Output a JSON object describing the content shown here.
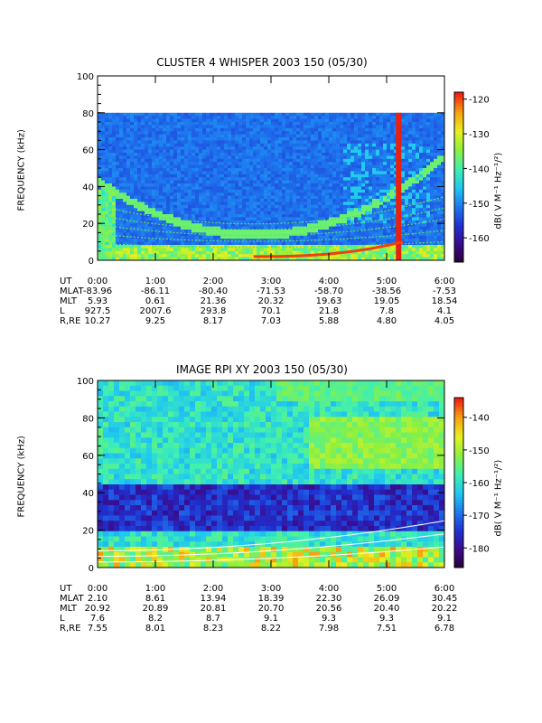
{
  "chart_data": [
    {
      "type": "heatmap",
      "title": "CLUSTER 4 WHISPER 2003 150 (05/30)",
      "ylabel": "FREQUENCY (kHz)",
      "xticks": [
        "0:00",
        "1:00",
        "2:00",
        "3:00",
        "4:00",
        "5:00",
        "6:00"
      ],
      "ylim": [
        0,
        100
      ],
      "yticks": [
        0,
        20,
        40,
        60,
        80,
        100
      ],
      "data_ceiling_khz": 80,
      "colorbar": {
        "label": "dB( V M⁻¹ Hz⁻¹/²)",
        "range": [
          -167,
          -118
        ],
        "ticks": [
          -160,
          -150,
          -140,
          -130,
          -120
        ]
      },
      "ephemeris": {
        "rows": [
          {
            "label": "UT",
            "values": [
              "0:00",
              "1:00",
              "2:00",
              "3:00",
              "4:00",
              "5:00",
              "6:00"
            ]
          },
          {
            "label": "MLAT",
            "values": [
              "-83.96",
              "-86.11",
              "-80.40",
              "-71.53",
              "-58.70",
              "-38.56",
              "-7.53"
            ]
          },
          {
            "label": "MLT",
            "values": [
              "5.93",
              "0.61",
              "21.36",
              "20.32",
              "19.63",
              "19.05",
              "18.54"
            ]
          },
          {
            "label": "L",
            "values": [
              "927.5",
              "2007.6",
              "293.8",
              "70.1",
              "21.8",
              "7.8",
              "4.1"
            ]
          },
          {
            "label": "R,RE",
            "values": [
              "10.27",
              "9.25",
              "8.17",
              "7.03",
              "5.88",
              "4.80",
              "4.05"
            ]
          }
        ]
      }
    },
    {
      "type": "heatmap",
      "title": "IMAGE RPI XY 2003 150 (05/30)",
      "ylabel": "FREQUENCY (kHz)",
      "xticks": [
        "0:00",
        "1:00",
        "2:00",
        "3:00",
        "4:00",
        "5:00",
        "6:00"
      ],
      "ylim": [
        0,
        100
      ],
      "yticks": [
        0,
        20,
        40,
        60,
        80,
        100
      ],
      "colorbar": {
        "label": "dB( V M⁻¹ Hz⁻¹/²)",
        "range": [
          -186,
          -134
        ],
        "ticks": [
          -180,
          -170,
          -160,
          -150,
          -140
        ]
      },
      "ephemeris": {
        "rows": [
          {
            "label": "UT",
            "values": [
              "0:00",
              "1:00",
              "2:00",
              "3:00",
              "4:00",
              "5:00",
              "6:00"
            ]
          },
          {
            "label": "MLAT",
            "values": [
              "2.10",
              "8.61",
              "13.94",
              "18.39",
              "22.30",
              "26.09",
              "30.45"
            ]
          },
          {
            "label": "MLT",
            "values": [
              "20.92",
              "20.89",
              "20.81",
              "20.70",
              "20.56",
              "20.40",
              "20.22"
            ]
          },
          {
            "label": "L",
            "values": [
              "7.6",
              "8.2",
              "8.7",
              "9.1",
              "9.3",
              "9.3",
              "9.1"
            ]
          },
          {
            "label": "R,RE",
            "values": [
              "7.55",
              "8.01",
              "8.23",
              "8.22",
              "7.98",
              "7.51",
              "6.78"
            ]
          }
        ]
      }
    }
  ],
  "colors": {
    "background": "#ffffff",
    "axis": "#000000",
    "colormap": [
      "#2a0030",
      "#3a0a8a",
      "#2030d0",
      "#1e78f0",
      "#20c8f0",
      "#40f0b0",
      "#8cf040",
      "#e8f020",
      "#f8a010",
      "#f02010"
    ]
  }
}
